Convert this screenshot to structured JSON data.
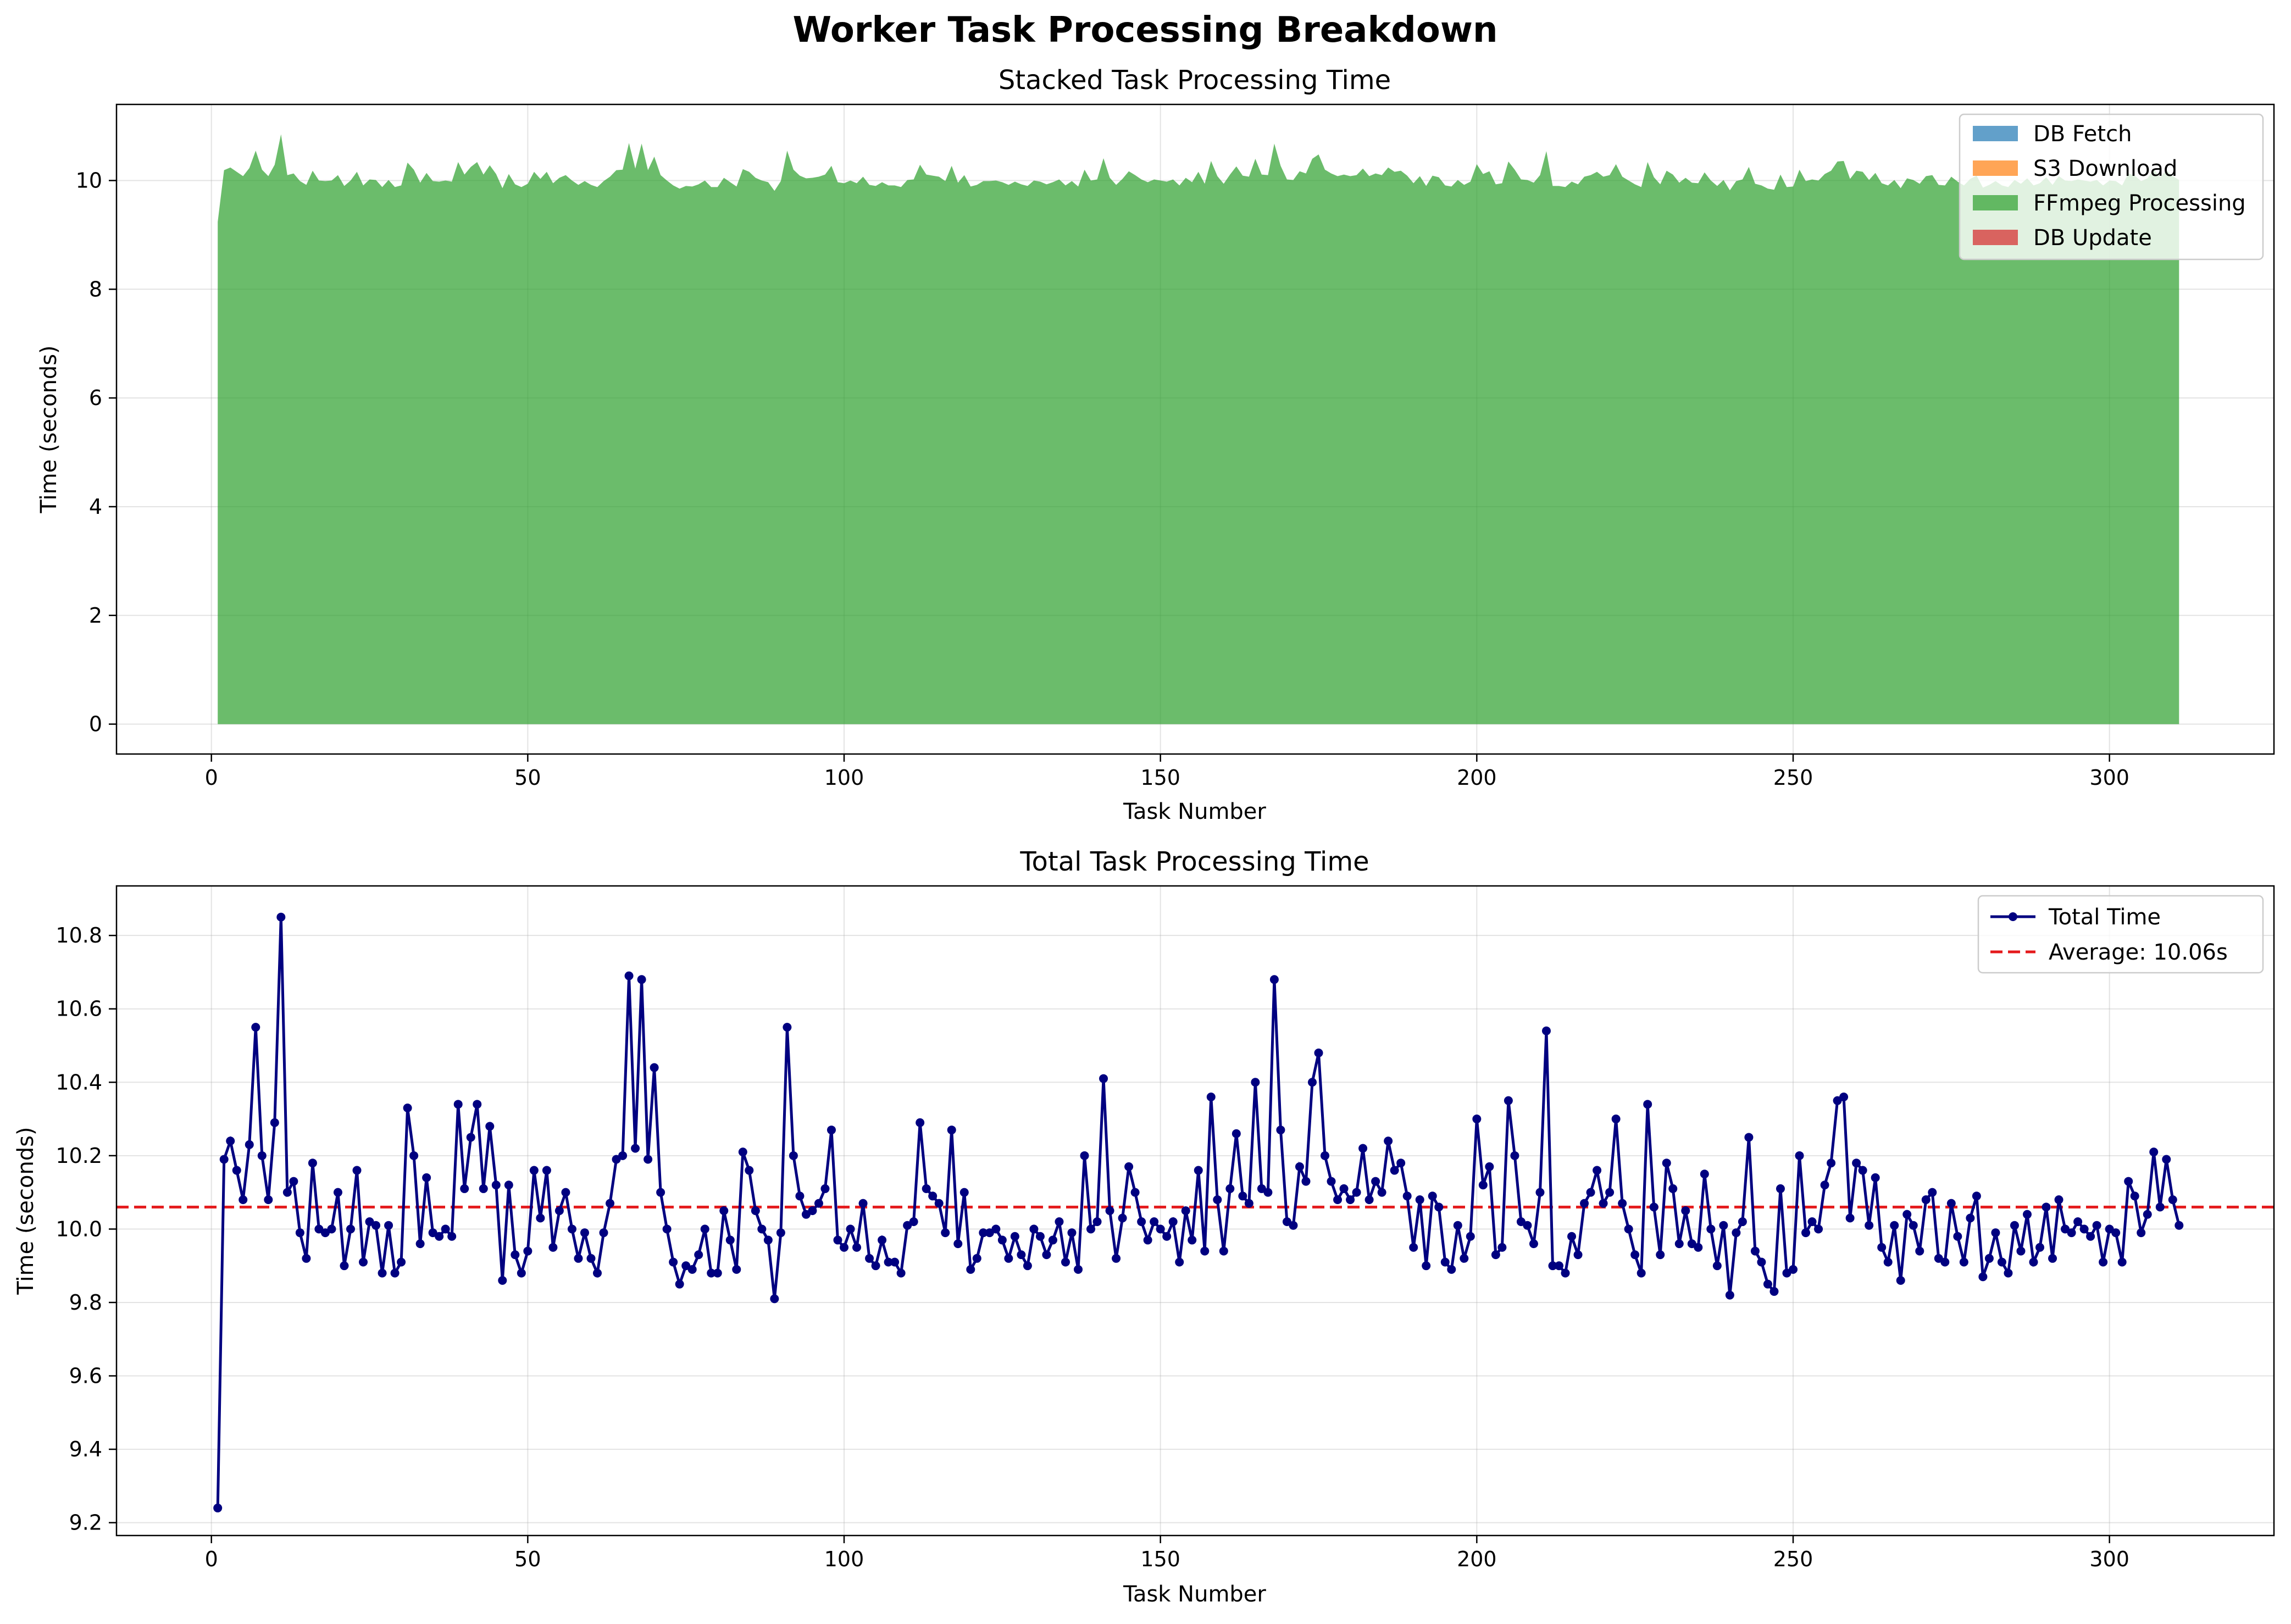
{
  "figure": {
    "title": "Worker Task Processing Breakdown"
  },
  "colors": {
    "db_fetch": "#1f77b4",
    "s3_download": "#ff7f0e",
    "ffmpeg": "#2ca02c",
    "db_update": "#d62728",
    "total_line": "#000080",
    "average_line": "#e41a1c"
  },
  "chart_data": [
    {
      "type": "area",
      "title": "Stacked Task Processing Time",
      "xlabel": "Task Number",
      "ylabel": "Time (seconds)",
      "xlim": [
        -15,
        326
      ],
      "ylim": [
        -0.55,
        11.4
      ],
      "xticks": [
        0,
        50,
        100,
        150,
        200,
        250,
        300
      ],
      "yticks": [
        0,
        2,
        4,
        6,
        8,
        10
      ],
      "grid": true,
      "legend_position": "top-right",
      "stacked": true,
      "x_range": [
        1,
        311
      ],
      "series": [
        {
          "name": "DB Fetch",
          "color_key": "db_fetch",
          "values": "near zero (not visible)"
        },
        {
          "name": "S3 Download",
          "color_key": "s3_download",
          "values": "near zero (not visible)"
        },
        {
          "name": "FFmpeg Processing",
          "color_key": "ffmpeg",
          "values": "same as total time series below"
        },
        {
          "name": "DB Update",
          "color_key": "db_update",
          "values": "near zero (not visible)"
        }
      ]
    },
    {
      "type": "line",
      "title": "Total Task Processing Time",
      "xlabel": "Task Number",
      "ylabel": "Time (seconds)",
      "xlim": [
        -15,
        326
      ],
      "ylim": [
        9.165,
        10.935
      ],
      "xticks": [
        0,
        50,
        100,
        150,
        200,
        250,
        300
      ],
      "yticks": [
        9.2,
        9.4,
        9.6,
        9.8,
        10.0,
        10.2,
        10.4,
        10.6,
        10.8
      ],
      "ytick_labels": [
        "9.2",
        "9.4",
        "9.6",
        "9.8",
        "10.0",
        "10.2",
        "10.4",
        "10.6",
        "10.8"
      ],
      "grid": true,
      "legend_position": "top-right",
      "average": {
        "label": "Average: 10.06s",
        "value": 10.06
      },
      "series": [
        {
          "name": "Total Time",
          "x_start": 1,
          "values": [
            9.24,
            10.19,
            10.24,
            10.16,
            10.08,
            10.23,
            10.55,
            10.2,
            10.08,
            10.29,
            10.85,
            10.1,
            10.13,
            9.99,
            9.92,
            10.18,
            10,
            9.99,
            10,
            10.1,
            9.9,
            10,
            10.16,
            9.91,
            10.02,
            10.01,
            9.88,
            10.01,
            9.88,
            9.91,
            10.33,
            10.2,
            9.96,
            10.14,
            9.99,
            9.98,
            10,
            9.98,
            10.34,
            10.11,
            10.25,
            10.34,
            10.11,
            10.28,
            10.12,
            9.86,
            10.12,
            9.93,
            9.88,
            9.94,
            10.16,
            10.03,
            10.16,
            9.95,
            10.05,
            10.1,
            10,
            9.92,
            9.99,
            9.92,
            9.88,
            9.99,
            10.07,
            10.19,
            10.2,
            10.69,
            10.22,
            10.68,
            10.19,
            10.44,
            10.1,
            10,
            9.91,
            9.85,
            9.9,
            9.89,
            9.93,
            10,
            9.88,
            9.88,
            10.05,
            9.97,
            9.89,
            10.21,
            10.16,
            10.05,
            10,
            9.97,
            9.81,
            9.99,
            10.55,
            10.2,
            10.09,
            10.04,
            10.05,
            10.07,
            10.11,
            10.27,
            9.97,
            9.95,
            10,
            9.95,
            10.07,
            9.92,
            9.9,
            9.97,
            9.91,
            9.91,
            9.88,
            10.01,
            10.02,
            10.29,
            10.11,
            10.09,
            10.07,
            9.99,
            10.27,
            9.96,
            10.1,
            9.89,
            9.92,
            9.99,
            9.99,
            10,
            9.97,
            9.92,
            9.98,
            9.93,
            9.9,
            10,
            9.98,
            9.93,
            9.97,
            10.02,
            9.91,
            9.99,
            9.89,
            10.2,
            10,
            10.02,
            10.41,
            10.05,
            9.92,
            10.03,
            10.17,
            10.1,
            10.02,
            9.97,
            10.02,
            10,
            9.98,
            10.02,
            9.91,
            10.05,
            9.97,
            10.16,
            9.94,
            10.36,
            10.08,
            9.94,
            10.11,
            10.26,
            10.09,
            10.07,
            10.4,
            10.11,
            10.1,
            10.68,
            10.27,
            10.02,
            10.01,
            10.17,
            10.13,
            10.4,
            10.48,
            10.2,
            10.13,
            10.08,
            10.11,
            10.08,
            10.1,
            10.22,
            10.08,
            10.13,
            10.1,
            10.24,
            10.16,
            10.18,
            10.09,
            9.95,
            10.08,
            9.9,
            10.09,
            10.06,
            9.91,
            9.89,
            10.01,
            9.92,
            9.98,
            10.3,
            10.12,
            10.17,
            9.93,
            9.95,
            10.35,
            10.2,
            10.02,
            10.01,
            9.96,
            10.1,
            10.54,
            9.9,
            9.9,
            9.88,
            9.98,
            9.93,
            10.07,
            10.1,
            10.16,
            10.07,
            10.1,
            10.3,
            10.07,
            10,
            9.93,
            9.88,
            10.34,
            10.06,
            9.93,
            10.18,
            10.11,
            9.96,
            10.05,
            9.96,
            9.95,
            10.15,
            10,
            9.9,
            10.01,
            9.82,
            9.99,
            10.02,
            10.25,
            9.94,
            9.91,
            9.85,
            9.83,
            10.11,
            9.88,
            9.89,
            10.2,
            9.99,
            10.02,
            10,
            10.12,
            10.18,
            10.35,
            10.36,
            10.03,
            10.18,
            10.16,
            10.01,
            10.14,
            9.95,
            9.91,
            10.01,
            9.86,
            10.04,
            10.01,
            9.94,
            10.08,
            10.1,
            9.92,
            9.91,
            10.07,
            9.98,
            9.91,
            10.03,
            10.09,
            9.87,
            9.92,
            9.99,
            9.91,
            9.88,
            10.01,
            9.94,
            10.04,
            9.91,
            9.95,
            10.06,
            9.92,
            10.08,
            10,
            9.99,
            10.02,
            10,
            9.98,
            10.01,
            9.91,
            10,
            9.99,
            9.91,
            10.13,
            10.09,
            9.99,
            10.04,
            10.21,
            10.06,
            10.19,
            10.08,
            10.01
          ]
        }
      ]
    }
  ]
}
